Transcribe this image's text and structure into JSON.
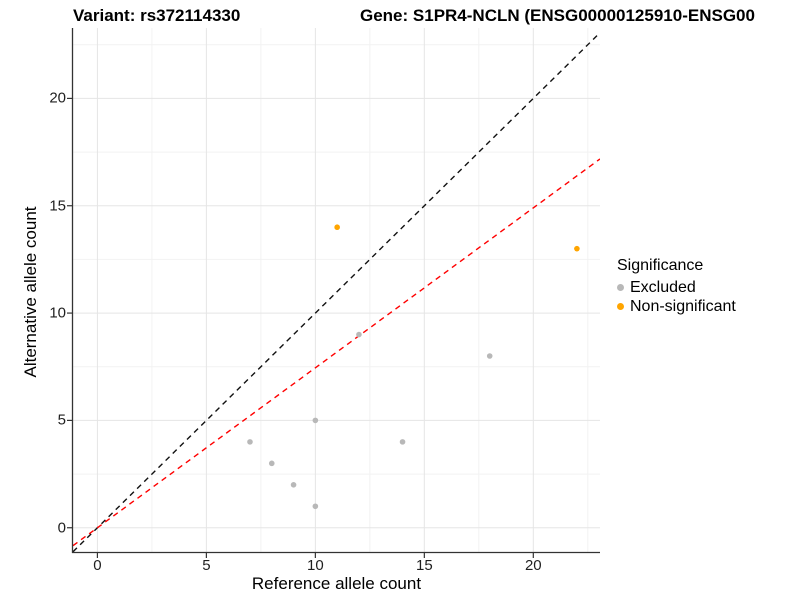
{
  "chart_data": {
    "type": "scatter",
    "title_left": "Variant: rs372114330",
    "title_right": "Gene: S1PR4-NCLN (ENSG00000125910-ENSG00",
    "xlabel": "Reference allele count",
    "ylabel": "Alternative allele count",
    "xlim": [
      -1.12,
      23.06
    ],
    "ylim": [
      -1.13,
      23.28
    ],
    "x_ticks": [
      0,
      5,
      10,
      15,
      20
    ],
    "y_ticks": [
      0,
      5,
      10,
      15,
      20
    ],
    "x_minor_ticks": [
      2.5,
      7.5,
      12.5,
      17.5,
      22.5
    ],
    "y_minor_ticks": [
      2.5,
      7.5,
      12.5,
      17.5,
      22.5
    ],
    "grid": true,
    "series": [
      {
        "name": "Excluded",
        "color": "#b8b8b8",
        "points": [
          [
            7,
            4
          ],
          [
            8,
            3
          ],
          [
            9,
            2
          ],
          [
            10,
            1
          ],
          [
            10,
            5
          ],
          [
            12,
            9
          ],
          [
            14,
            4
          ],
          [
            18,
            8
          ]
        ]
      },
      {
        "name": "Non-significant",
        "color": "#ffa500",
        "points": [
          [
            11,
            14
          ],
          [
            22,
            13
          ]
        ]
      }
    ],
    "lines": [
      {
        "name": "identity-line",
        "slope": 1.0,
        "intercept": 0,
        "color": "#111111",
        "dashed": true
      },
      {
        "name": "expected-ratio-line",
        "slope": 0.745,
        "intercept": 0,
        "color": "#ff0000",
        "dashed": true
      }
    ],
    "legend": {
      "title": "Significance",
      "position": "right",
      "items": [
        {
          "label": "Excluded",
          "color": "#b8b8b8"
        },
        {
          "label": "Non-significant",
          "color": "#ffa500"
        }
      ]
    }
  }
}
